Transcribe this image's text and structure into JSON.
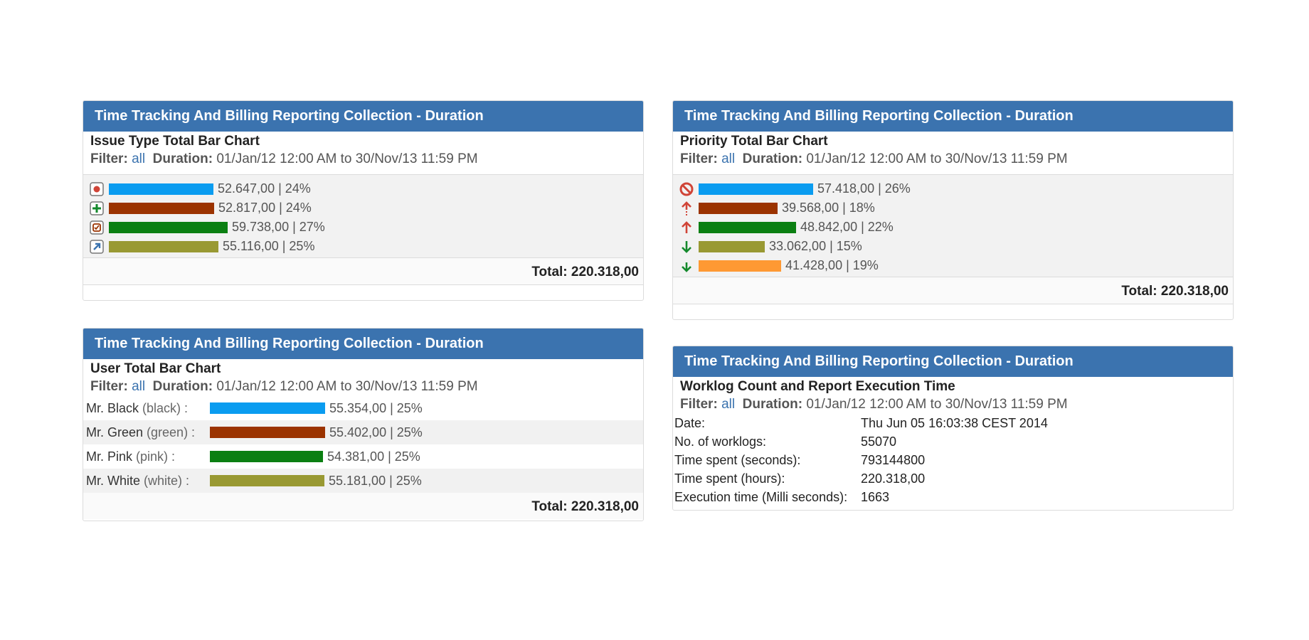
{
  "gadgets": [
    {
      "header": "Time Tracking And Billing Reporting Collection - Duration",
      "title": "Issue Type Total Bar Chart",
      "filter_label": "Filter:",
      "filter_value": "all",
      "duration_label": "Duration:",
      "duration_value": "01/Jan/12 12:00 AM to 30/Nov/13 11:59 PM",
      "total": "Total: 220.318,00"
    },
    {
      "header": "Time Tracking And Billing Reporting Collection - Duration",
      "title": "Priority Total Bar Chart",
      "filter_label": "Filter:",
      "filter_value": "all",
      "duration_label": "Duration:",
      "duration_value": "01/Jan/12 12:00 AM to 30/Nov/13 11:59 PM",
      "total": "Total: 220.318,00"
    },
    {
      "header": "Time Tracking And Billing Reporting Collection - Duration",
      "title": "User Total Bar Chart",
      "filter_label": "Filter:",
      "filter_value": "all",
      "duration_label": "Duration:",
      "duration_value": "01/Jan/12 12:00 AM to 30/Nov/13 11:59 PM",
      "total": "Total: 220.318,00"
    },
    {
      "header": "Time Tracking And Billing Reporting Collection - Duration",
      "title": "Worklog Count and Report Execution Time",
      "filter_label": "Filter:",
      "filter_value": "all",
      "duration_label": "Duration:",
      "duration_value": "01/Jan/12 12:00 AM to 30/Nov/13 11:59 PM"
    }
  ],
  "colors": {
    "header": "#3b73af",
    "blue": "#0a9cf0",
    "brown": "#9b3300",
    "green": "#0b7f12",
    "olive": "#999933",
    "orange": "#fe9933"
  },
  "chart_data": [
    {
      "type": "bar",
      "orientation": "horizontal",
      "categories": [
        "bug-icon",
        "new-feature-icon",
        "task-icon",
        "improvement-icon"
      ],
      "values": [
        52647.0,
        52817.0,
        59738.0,
        55116.0
      ],
      "labels": [
        "52.647,00 | 24%",
        "52.817,00 | 24%",
        "59.738,00 | 27%",
        "55.116,00 | 25%"
      ],
      "colors": [
        "#0a9cf0",
        "#9b3300",
        "#0b7f12",
        "#999933"
      ]
    },
    {
      "type": "bar",
      "orientation": "horizontal",
      "categories": [
        "blocker-icon",
        "critical-icon",
        "major-icon",
        "minor-icon",
        "trivial-icon"
      ],
      "values": [
        57418.0,
        39568.0,
        48842.0,
        33062.0,
        41428.0
      ],
      "labels": [
        "57.418,00 | 26%",
        "39.568,00 | 18%",
        "48.842,00 | 22%",
        "33.062,00 | 15%",
        "41.428,00 | 19%"
      ],
      "colors": [
        "#0a9cf0",
        "#9b3300",
        "#0b7f12",
        "#999933",
        "#fe9933"
      ]
    },
    {
      "type": "bar",
      "orientation": "horizontal",
      "categories": [
        {
          "name": "Mr. Black",
          "id": "(black) :"
        },
        {
          "name": "Mr. Green",
          "id": "(green) :"
        },
        {
          "name": "Mr. Pink",
          "id": "(pink) :"
        },
        {
          "name": "Mr. White",
          "id": "(white) :"
        }
      ],
      "values": [
        55354.0,
        55402.0,
        54381.0,
        55181.0
      ],
      "labels": [
        "55.354,00 | 25%",
        "55.402,00 | 25%",
        "54.381,00 | 25%",
        "55.181,00 | 25%"
      ],
      "colors": [
        "#0a9cf0",
        "#9b3300",
        "#0b7f12",
        "#999933"
      ]
    }
  ],
  "worklog": [
    {
      "key": "Date:",
      "value": "Thu Jun 05 16:03:38 CEST 2014"
    },
    {
      "key": "No. of worklogs:",
      "value": "55070"
    },
    {
      "key": "Time spent (seconds):",
      "value": "793144800"
    },
    {
      "key": "Time spent (hours):",
      "value": "220.318,00"
    },
    {
      "key": "Execution time (Milli seconds):",
      "value": "1663"
    }
  ]
}
